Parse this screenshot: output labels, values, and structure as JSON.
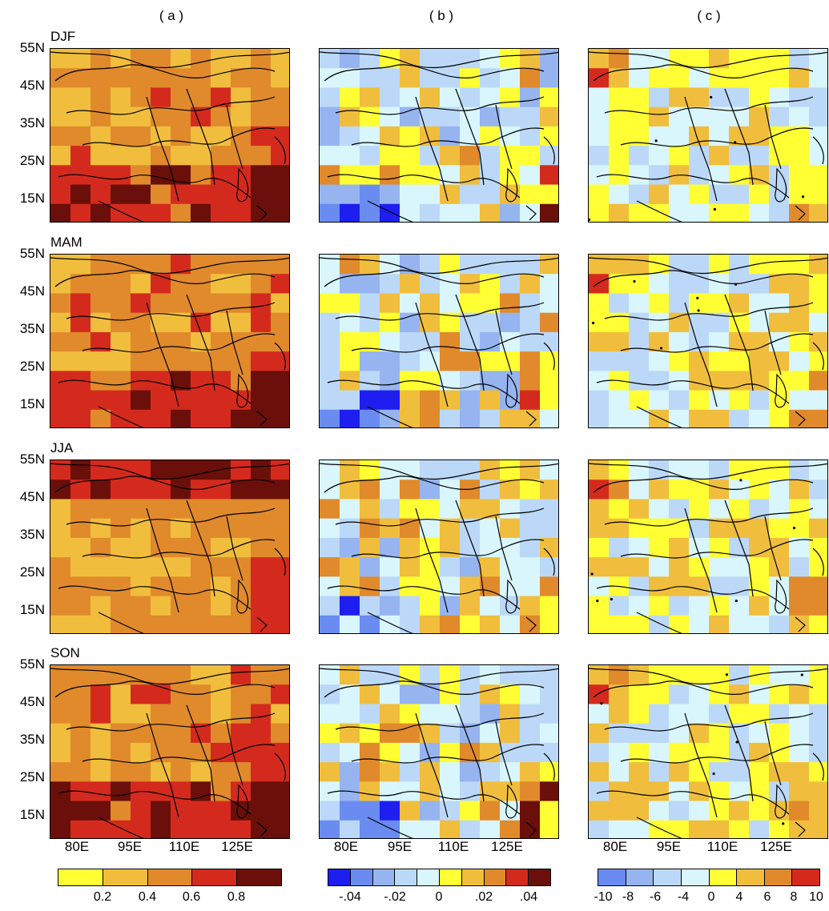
{
  "column_titles": [
    "( a )",
    "( b )",
    "( c )"
  ],
  "seasons": [
    "DJF",
    "MAM",
    "JJA",
    "SON"
  ],
  "lat_labels": [
    "55N",
    "45N",
    "35N",
    "25N",
    "15N"
  ],
  "lon_labels": [
    "80E",
    "95E",
    "110E",
    "125E"
  ],
  "colorbars": [
    {
      "colors": [
        "#ffff33",
        "#f0be3c",
        "#e08a2c",
        "#d42a1e",
        "#6a0f0a"
      ],
      "labels": [
        "0.2",
        "0.4",
        "0.6",
        "0.8"
      ]
    },
    {
      "colors": [
        "#1e1ef0",
        "#6a8cf0",
        "#96b4f0",
        "#bcd8f8",
        "#d8f6fb",
        "#ffff33",
        "#f0be3c",
        "#e08a2c",
        "#d42a1e",
        "#6a0f0a"
      ],
      "labels": [
        "-.04",
        "-.02",
        "0",
        ".02",
        ".04"
      ]
    },
    {
      "colors": [
        "#6a8cf0",
        "#96b4f0",
        "#bcd8f8",
        "#d8f6fb",
        "#ffff33",
        "#f0be3c",
        "#e08a2c",
        "#d42a1e"
      ],
      "labels": [
        "-10",
        "-8",
        "-6",
        "-4",
        "0",
        "4",
        "6",
        "8",
        "10"
      ]
    }
  ]
}
